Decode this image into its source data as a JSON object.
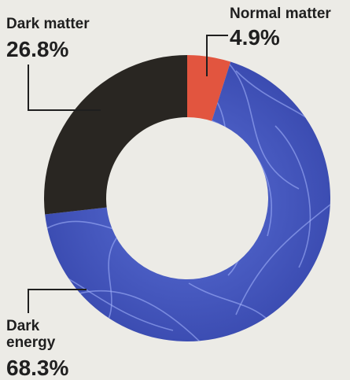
{
  "chart_data": {
    "type": "pie",
    "donut": true,
    "categories": [
      "Normal matter",
      "Dark energy",
      "Dark matter"
    ],
    "values": [
      4.9,
      68.3,
      26.8
    ],
    "value_labels": [
      "4.9%",
      "68.3%",
      "26.8%"
    ],
    "colors": [
      "#e2553f",
      "#3d4fb6",
      "#292622"
    ],
    "label_lines": [
      [
        "Normal matter"
      ],
      [
        "Dark",
        "energy"
      ],
      [
        "Dark matter"
      ]
    ],
    "start": "top",
    "direction": "clockwise"
  }
}
